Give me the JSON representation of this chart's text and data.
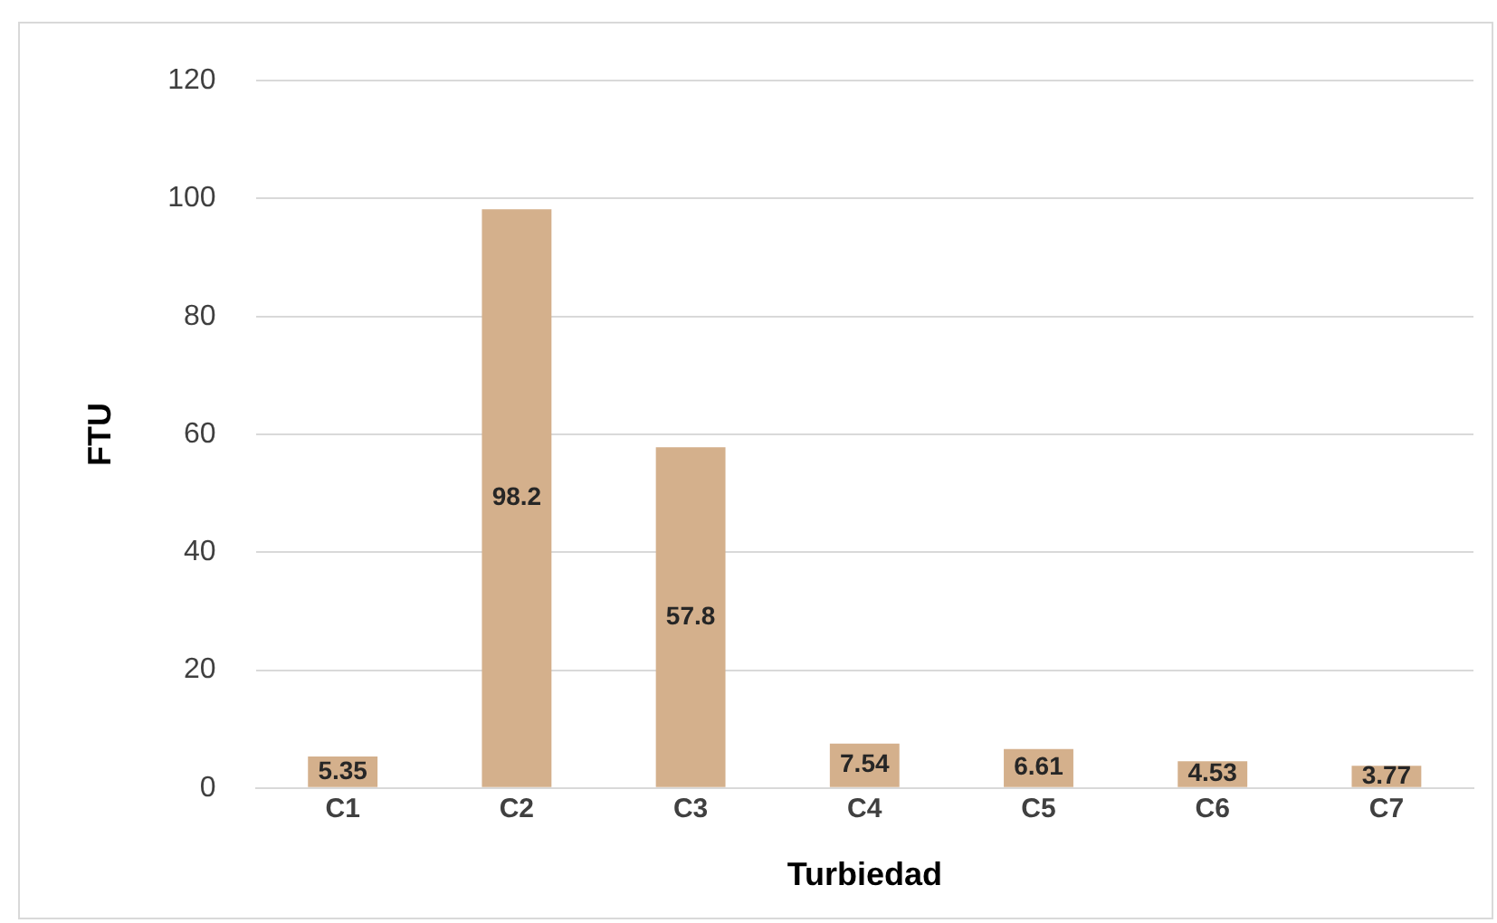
{
  "chart_data": {
    "type": "bar",
    "xlabel": "Turbiedad",
    "ylabel": "FTU",
    "categories": [
      "C1",
      "C2",
      "C3",
      "C4",
      "C5",
      "C6",
      "C7"
    ],
    "values": [
      5.35,
      98.2,
      57.8,
      7.54,
      6.61,
      4.53,
      3.77
    ],
    "color": "#d4b08c",
    "ylim": [
      0,
      120
    ],
    "yticks": [
      0,
      20,
      40,
      60,
      80,
      100,
      120
    ],
    "grid": "y",
    "data_labels": true,
    "legend": false
  }
}
